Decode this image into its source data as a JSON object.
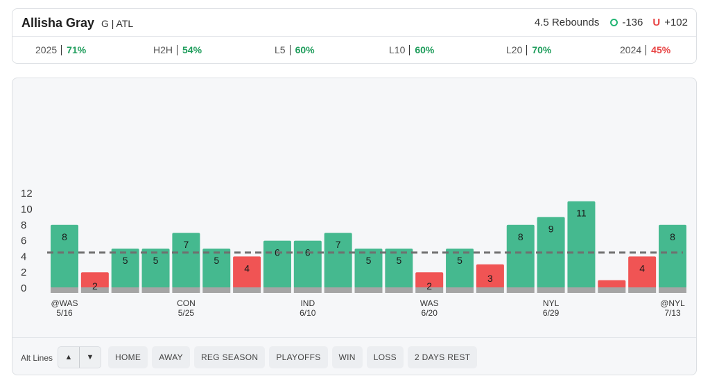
{
  "header": {
    "player_name": "Allisha Gray",
    "player_meta": "G | ATL",
    "line_label": "4.5 Rebounds",
    "over_odds": "-136",
    "under_mark": "U",
    "under_odds": "+102"
  },
  "splits": [
    {
      "label": "2025",
      "value": "71%",
      "status": "good"
    },
    {
      "label": "H2H",
      "value": "54%",
      "status": "good"
    },
    {
      "label": "L5",
      "value": "60%",
      "status": "good"
    },
    {
      "label": "L10",
      "value": "60%",
      "status": "good"
    },
    {
      "label": "L20",
      "value": "70%",
      "status": "good"
    },
    {
      "label": "2024",
      "value": "45%",
      "status": "bad"
    }
  ],
  "colors": {
    "over": "#45b98f",
    "under": "#f05454",
    "base": "#a5a5a5",
    "line": "#6f6f6f"
  },
  "chart_data": {
    "type": "bar",
    "title": "",
    "xlabel": "",
    "ylabel": "",
    "ylim": [
      0,
      12
    ],
    "yticks": [
      0,
      2,
      4,
      6,
      8,
      10,
      12
    ],
    "threshold": 4.5,
    "values": [
      8,
      2,
      5,
      5,
      7,
      5,
      4,
      6,
      6,
      7,
      5,
      5,
      2,
      5,
      3,
      8,
      9,
      11,
      1,
      4,
      8
    ],
    "labels_shown": [
      true,
      true,
      true,
      true,
      true,
      true,
      true,
      true,
      true,
      true,
      true,
      true,
      true,
      true,
      true,
      true,
      true,
      true,
      false,
      true,
      true
    ],
    "x_labels": [
      {
        "index": 0,
        "opponent": "@WAS",
        "date": "5/16"
      },
      {
        "index": 4,
        "opponent": "CON",
        "date": "5/25"
      },
      {
        "index": 8,
        "opponent": "IND",
        "date": "6/10"
      },
      {
        "index": 12,
        "opponent": "WAS",
        "date": "6/20"
      },
      {
        "index": 16,
        "opponent": "NYL",
        "date": "6/29"
      },
      {
        "index": 20,
        "opponent": "@NYL",
        "date": "7/13"
      }
    ]
  },
  "filters": {
    "alt_lines_label": "Alt Lines",
    "up_glyph": "▲",
    "down_glyph": "▼",
    "buttons": [
      "HOME",
      "AWAY",
      "REG SEASON",
      "PLAYOFFS",
      "WIN",
      "LOSS",
      "2 DAYS REST"
    ]
  }
}
